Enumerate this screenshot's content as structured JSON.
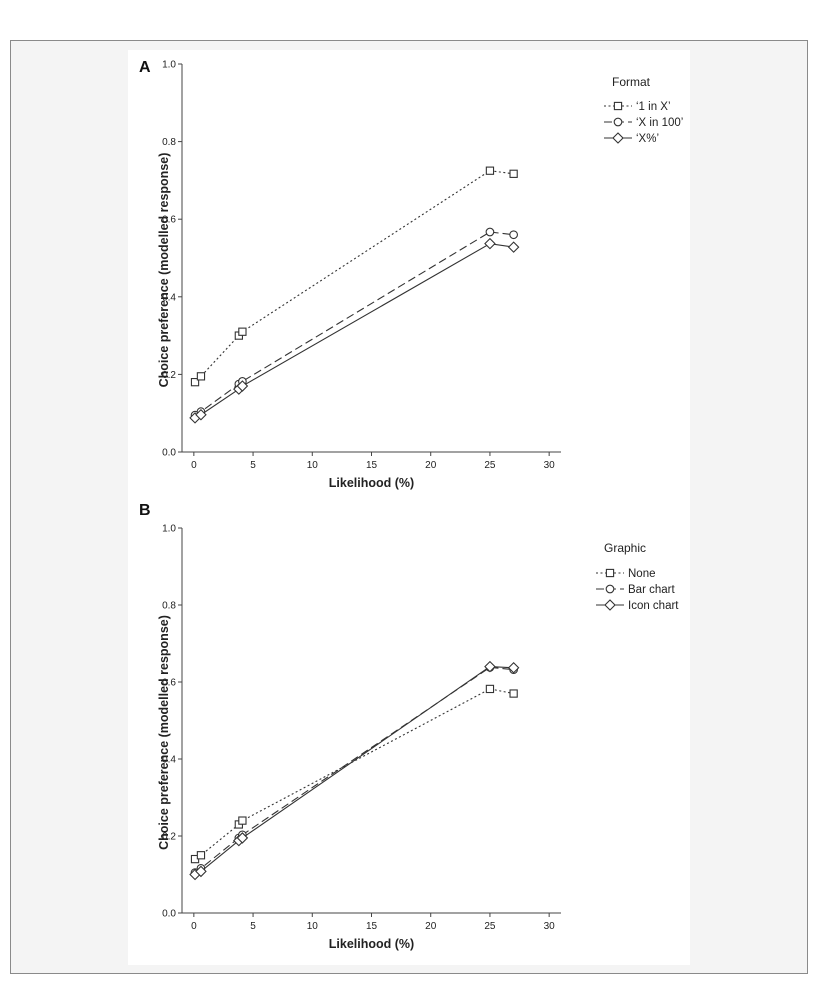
{
  "chart_data": [
    {
      "panel": "A",
      "type": "line",
      "xlabel": "Likelihood (%)",
      "ylabel": "Choice preference (modelled response)",
      "xlim": [
        -1,
        31
      ],
      "ylim": [
        0.0,
        1.0
      ],
      "x_ticks": [
        0,
        5,
        10,
        15,
        20,
        25,
        30
      ],
      "y_ticks": [
        "0.0",
        "0.2",
        "0.4",
        "0.6",
        "0.8",
        "1.0"
      ],
      "grid": false,
      "legend": {
        "title": "Format",
        "placement": "top-right",
        "items": [
          "‘1 in X’",
          "‘X in 100’",
          "‘X%’"
        ]
      },
      "series": [
        {
          "name": "‘1 in X’",
          "marker": "square",
          "dash": "dotted",
          "x": [
            0.1,
            0.6,
            3.8,
            4.1,
            25,
            27
          ],
          "y": [
            0.18,
            0.195,
            0.3,
            0.31,
            0.725,
            0.717
          ]
        },
        {
          "name": "‘X in 100’",
          "marker": "circle",
          "dash": "dashed",
          "x": [
            0.1,
            0.6,
            3.8,
            4.1,
            25,
            27
          ],
          "y": [
            0.095,
            0.104,
            0.175,
            0.182,
            0.567,
            0.56
          ]
        },
        {
          "name": "‘X%’",
          "marker": "diamond",
          "dash": "solid",
          "x": [
            0.1,
            0.6,
            3.8,
            4.1,
            25,
            27
          ],
          "y": [
            0.088,
            0.096,
            0.162,
            0.17,
            0.537,
            0.528
          ]
        }
      ]
    },
    {
      "panel": "B",
      "type": "line",
      "xlabel": "Likelihood (%)",
      "ylabel": "Choice preference (modelled response)",
      "xlim": [
        -1,
        31
      ],
      "ylim": [
        0.0,
        1.0
      ],
      "x_ticks": [
        0,
        5,
        10,
        15,
        20,
        25,
        30
      ],
      "y_ticks": [
        "0.0",
        "0.2",
        "0.4",
        "0.6",
        "0.8",
        "1.0"
      ],
      "grid": false,
      "legend": {
        "title": "Graphic",
        "placement": "top-right",
        "items": [
          "None",
          "Bar chart",
          "Icon chart"
        ]
      },
      "series": [
        {
          "name": "None",
          "marker": "square",
          "dash": "dotted",
          "x": [
            0.1,
            0.6,
            3.8,
            4.1,
            25,
            27
          ],
          "y": [
            0.14,
            0.15,
            0.23,
            0.24,
            0.582,
            0.57
          ]
        },
        {
          "name": "Bar chart",
          "marker": "circle",
          "dash": "dashed",
          "x": [
            0.1,
            0.6,
            3.8,
            4.1,
            25,
            27
          ],
          "y": [
            0.105,
            0.116,
            0.195,
            0.203,
            0.638,
            0.632
          ]
        },
        {
          "name": "Icon chart",
          "marker": "diamond",
          "dash": "solid",
          "x": [
            0.1,
            0.6,
            3.8,
            4.1,
            25,
            27
          ],
          "y": [
            0.1,
            0.108,
            0.188,
            0.195,
            0.64,
            0.637
          ]
        }
      ]
    }
  ]
}
